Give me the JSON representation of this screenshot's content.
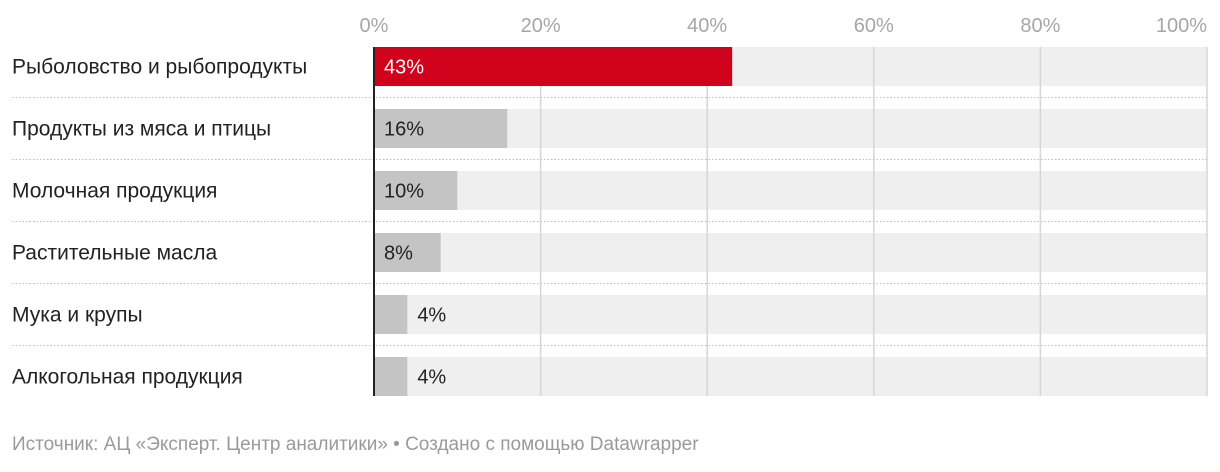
{
  "chart_data": {
    "type": "bar",
    "orientation": "horizontal",
    "categories": [
      "Рыболовство и рыбопродукты",
      "Продукты из мяса и птицы",
      "Молочная продукция",
      "Растительные масла",
      "Мука и крупы",
      "Алкогольная продукция"
    ],
    "values": [
      43,
      16,
      10,
      8,
      4,
      4
    ],
    "value_labels": [
      "43%",
      "16%",
      "10%",
      "8%",
      "4%",
      "4%"
    ],
    "xlim": [
      0,
      100
    ],
    "x_ticks": [
      0,
      20,
      40,
      60,
      80,
      100
    ],
    "x_tick_labels": [
      "0%",
      "20%",
      "40%",
      "60%",
      "80%",
      "100%"
    ],
    "grid": true,
    "colors": {
      "highlight": "#d0021b",
      "bar": "#c4c4c4",
      "track": "#efefef",
      "grid": "#d6d6d6",
      "tick_text": "#a6a6a6",
      "label_text": "#222222"
    }
  },
  "footer": {
    "source_text": "Источник: АЦ «Эксперт. Центр аналитики» • Создано с помощью Datawrapper"
  }
}
